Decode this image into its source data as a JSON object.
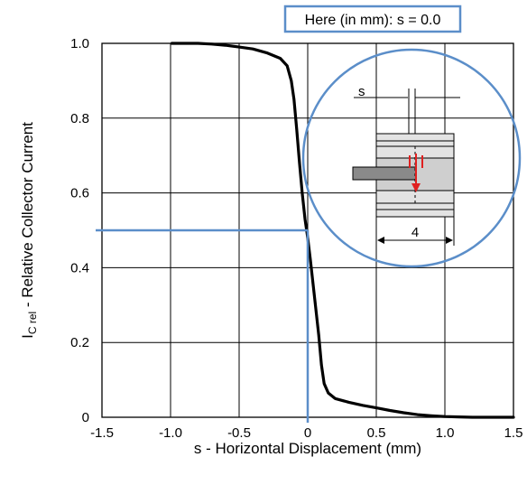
{
  "chart_data": {
    "type": "line",
    "xlabel": "s - Horizontal Displacement (mm)",
    "ylabel_main": "I",
    "ylabel_sub": "C rel",
    "ylabel_rest": " - Relative Collector Current",
    "xlim": [
      -1.5,
      1.5
    ],
    "ylim": [
      0,
      1.0
    ],
    "x_ticks": [
      -1.5,
      -1.0,
      -0.5,
      0,
      0.5,
      1.0,
      1.5
    ],
    "x_tick_labels": [
      "-1.5",
      "-1.0",
      "-0.5",
      "0",
      "0.5",
      "1.0",
      "1.5"
    ],
    "y_ticks": [
      0,
      0.2,
      0.4,
      0.6,
      0.8,
      1.0
    ],
    "y_tick_labels": [
      "0",
      "0.2",
      "0.4",
      "0.6",
      "0.8",
      "1.0"
    ],
    "grid": true,
    "series": [
      {
        "color": "#000000",
        "x": [
          -0.99,
          -0.9,
          -0.8,
          -0.7,
          -0.6,
          -0.5,
          -0.4,
          -0.3,
          -0.2,
          -0.15,
          -0.12,
          -0.1,
          -0.08,
          -0.06,
          -0.04,
          -0.02,
          0.0,
          0.02,
          0.05,
          0.08,
          0.1,
          0.12,
          0.15,
          0.2,
          0.3,
          0.4,
          0.5,
          0.6,
          0.7,
          0.8,
          0.9,
          1.0,
          1.1,
          1.2,
          1.3,
          1.4,
          1.5
        ],
        "y": [
          1.0,
          1.0,
          1.0,
          0.998,
          0.995,
          0.99,
          0.985,
          0.975,
          0.96,
          0.94,
          0.9,
          0.85,
          0.77,
          0.68,
          0.6,
          0.53,
          0.48,
          0.42,
          0.32,
          0.22,
          0.14,
          0.09,
          0.065,
          0.05,
          0.04,
          0.032,
          0.025,
          0.018,
          0.012,
          0.007,
          0.004,
          0.002,
          0.001,
          0.0,
          0.0,
          0.0,
          0.0
        ]
      }
    ],
    "highlight": {
      "color": "#5b8ec9",
      "label": "Here (in mm): s = 0.0",
      "x": 0.0,
      "y": 0.5
    },
    "inset": {
      "s_label": "s",
      "width_label": "4",
      "arrow_color": "#e02020"
    }
  }
}
